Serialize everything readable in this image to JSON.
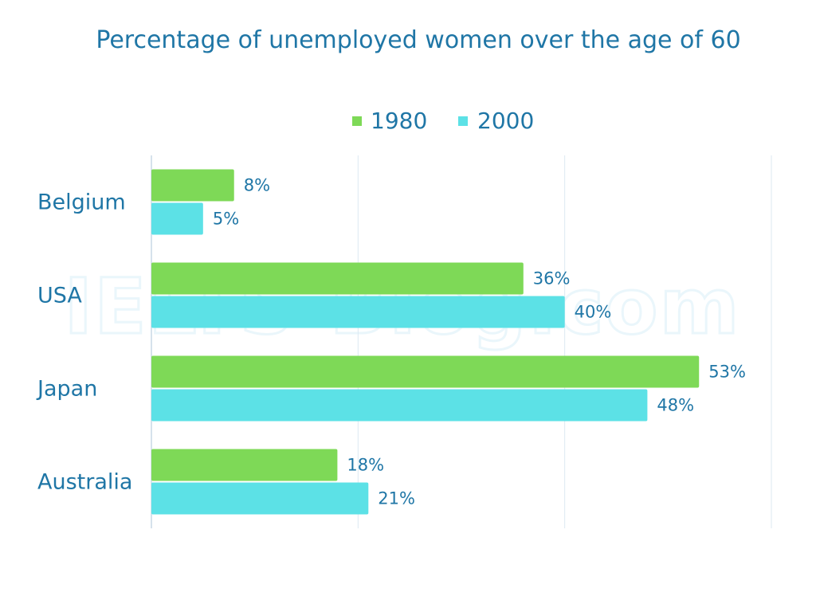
{
  "chart_data": {
    "type": "bar",
    "orientation": "horizontal",
    "title": "Percentage of unemployed women over the age of 60",
    "categories": [
      "Belgium",
      "USA",
      "Japan",
      "Australia"
    ],
    "series": [
      {
        "name": "1980",
        "values": [
          8,
          36,
          53,
          18
        ],
        "labels": [
          "8%",
          "36%",
          "53%",
          "18%"
        ]
      },
      {
        "name": "2000",
        "values": [
          5,
          40,
          48,
          21
        ],
        "labels": [
          "5%",
          "40%",
          "48%",
          "21%"
        ]
      }
    ],
    "xlim": [
      0,
      60
    ],
    "grid": true,
    "legend_position": "top-center",
    "watermark": "IELTS-Blog.com"
  },
  "colors": {
    "series": [
      "#7ed957",
      "#5ce1e6"
    ],
    "text": "#1f76a6",
    "grid": "#dce9f2",
    "axis": "#c9d9e6"
  }
}
